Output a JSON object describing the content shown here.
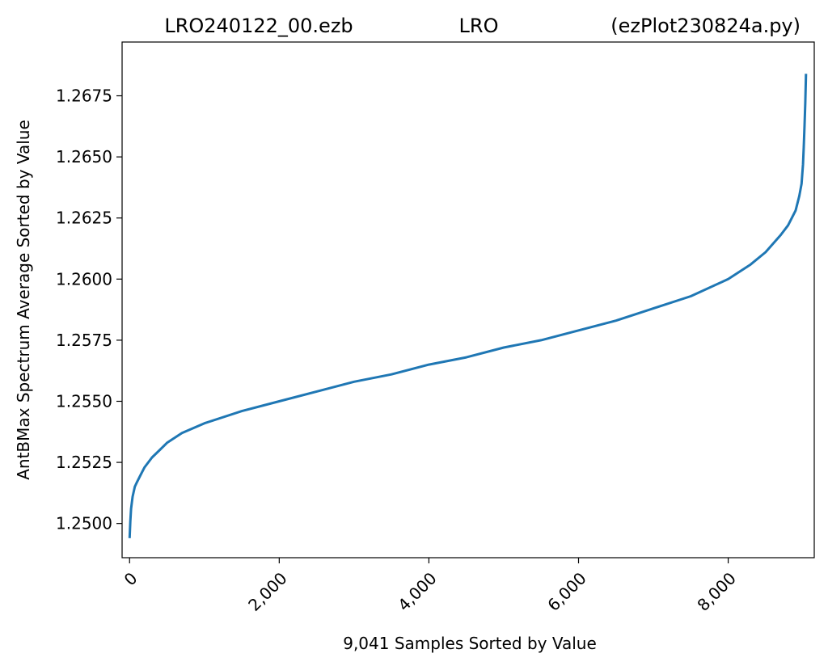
{
  "chart_data": {
    "type": "line",
    "title_left": "LRO240122_00.ezb",
    "title_center": "LRO",
    "title_right": "(ezPlot230824a.py)",
    "xlabel": "9,041 Samples Sorted by Value",
    "ylabel": "AntBMax Spectrum Average Sorted by Value",
    "xlim": [
      -100,
      9150
    ],
    "ylim": [
      1.2486,
      1.2697
    ],
    "xticks": [
      0,
      2000,
      4000,
      6000,
      8000
    ],
    "xtick_labels": [
      "0",
      "2,000",
      "4,000",
      "6,000",
      "8,000"
    ],
    "yticks": [
      1.25,
      1.2525,
      1.255,
      1.2575,
      1.26,
      1.2625,
      1.265,
      1.2675
    ],
    "ytick_labels": [
      "1.2500",
      "1.2525",
      "1.2550",
      "1.2575",
      "1.2600",
      "1.2625",
      "1.2650",
      "1.2675"
    ],
    "grid": false,
    "line_color": "#1f77b4",
    "series": [
      {
        "x": [
          0,
          10,
          20,
          40,
          70,
          100,
          150,
          200,
          300,
          400,
          500,
          700,
          1000,
          1500,
          2000,
          2500,
          3000,
          3500,
          4000,
          4500,
          5000,
          5500,
          6000,
          6500,
          7000,
          7500,
          8000,
          8300,
          8500,
          8700,
          8800,
          8900,
          8950,
          8980,
          9000,
          9010,
          9020,
          9030,
          9040
        ],
        "y": [
          1.2494,
          1.2501,
          1.2506,
          1.2511,
          1.2515,
          1.2517,
          1.252,
          1.2523,
          1.2527,
          1.253,
          1.2533,
          1.2537,
          1.2541,
          1.2546,
          1.255,
          1.2554,
          1.2558,
          1.2561,
          1.2565,
          1.2568,
          1.2572,
          1.2575,
          1.2579,
          1.2583,
          1.2588,
          1.2593,
          1.26,
          1.2606,
          1.2611,
          1.2618,
          1.2622,
          1.2628,
          1.2634,
          1.2639,
          1.2647,
          1.2654,
          1.2663,
          1.2672,
          1.2684
        ]
      }
    ]
  }
}
